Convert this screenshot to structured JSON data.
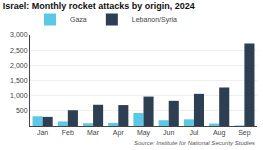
{
  "chart_data": {
    "type": "bar",
    "title": "Israel: Monthly rocket attacks by origin, 2024",
    "categories": [
      "Jan",
      "Feb",
      "Mar",
      "Apr",
      "May",
      "Jun",
      "Jul",
      "Aug",
      "Sep"
    ],
    "series": [
      {
        "name": "Gaza",
        "color": "#5bc8e8",
        "values": [
          320,
          150,
          90,
          100,
          430,
          190,
          220,
          80,
          20
        ]
      },
      {
        "name": "Lebanon/Syria",
        "color": "#2d3f52",
        "values": [
          300,
          520,
          700,
          690,
          970,
          830,
          1060,
          1270,
          2720
        ]
      }
    ],
    "ylim": [
      0,
      3000
    ],
    "yticks": [
      500,
      {
        "value": 1000,
        "label": "1,000"
      },
      {
        "value": 1500,
        "label": "1,500"
      },
      {
        "value": 2000,
        "label": "2,000"
      },
      {
        "value": 2500,
        "label": "2,500"
      },
      {
        "value": 3000,
        "label": "3,000"
      }
    ],
    "grid": true,
    "legend": "top",
    "annotations": [
      "Source: Institute for National Security Studies"
    ]
  }
}
